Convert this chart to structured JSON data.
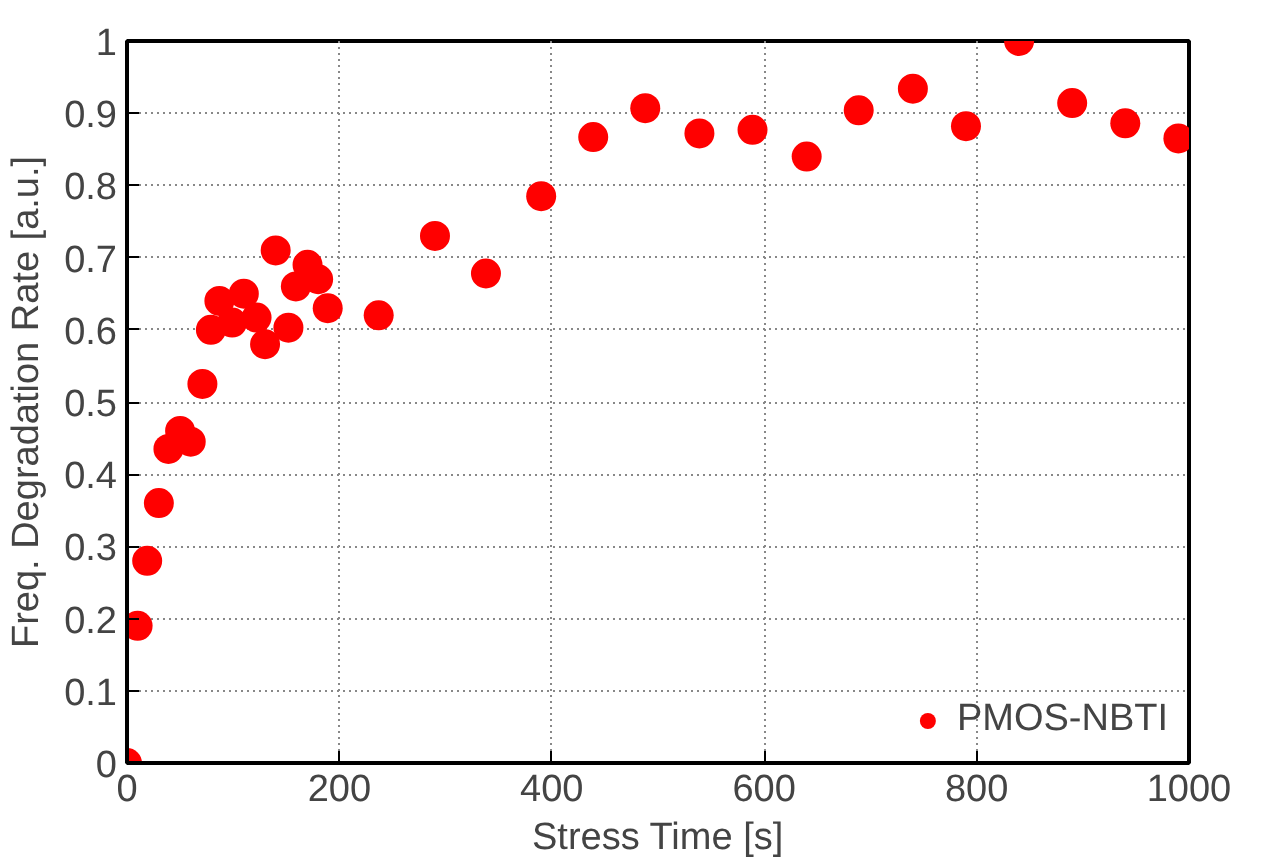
{
  "chart_data": {
    "type": "scatter",
    "xlabel": "Stress Time [s]",
    "ylabel": "Freq. Degradation Rate [a.u.]",
    "x": [
      0,
      10,
      19,
      30,
      39,
      50,
      60,
      71,
      79,
      87,
      99,
      110,
      122,
      130,
      140,
      152,
      159,
      170,
      180,
      189,
      237,
      290,
      338,
      390,
      439,
      488,
      539,
      589,
      640,
      689,
      740,
      790,
      840,
      890,
      940,
      990
    ],
    "series": [
      {
        "name": "PMOS-NBTI",
        "color": "#ff0000",
        "values": [
          0,
          0.19,
          0.28,
          0.36,
          0.435,
          0.46,
          0.445,
          0.525,
          0.6,
          0.64,
          0.61,
          0.65,
          0.617,
          0.58,
          0.71,
          0.603,
          0.66,
          0.69,
          0.67,
          0.63,
          0.62,
          0.73,
          0.678,
          0.785,
          0.867,
          0.907,
          0.872,
          0.877,
          0.84,
          0.904,
          0.934,
          0.882,
          1.0,
          0.914,
          0.886,
          0.865
        ]
      }
    ],
    "xlim": [
      0,
      1000
    ],
    "ylim": [
      0,
      1
    ],
    "xticks": [
      0,
      200,
      400,
      600,
      800,
      1000
    ],
    "yticks": [
      0,
      0.1,
      0.2,
      0.3,
      0.4,
      0.5,
      0.6,
      0.7,
      0.8,
      0.9,
      1
    ],
    "grid": true,
    "legend": "bottom right",
    "marker": "circle"
  }
}
